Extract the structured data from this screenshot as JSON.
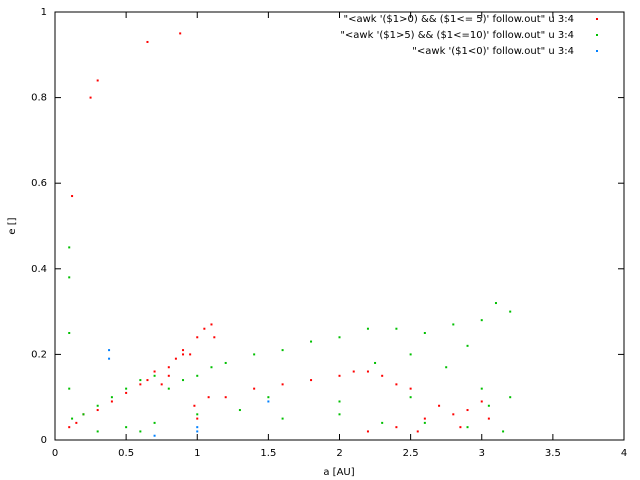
{
  "chart_data": {
    "type": "scatter",
    "x_label": "a [AU]",
    "y_label": "e []",
    "xlim": [
      0,
      4
    ],
    "xticks": [
      0,
      0.5,
      1,
      1.5,
      2,
      2.5,
      3,
      3.5,
      4
    ],
    "ylim": [
      0,
      1
    ],
    "yticks": [
      0,
      0.2,
      0.4,
      0.6,
      0.8,
      1
    ],
    "grid": false,
    "legend": "top-right",
    "series": [
      {
        "name": "\"<awk '($1>0) && ($1<= 5)' follow.out\" u 3:4",
        "color": "#ff0000",
        "x": [
          0.1,
          0.15,
          0.2,
          0.3,
          0.4,
          0.5,
          0.6,
          0.65,
          0.7,
          0.75,
          0.8,
          0.85,
          0.9,
          0.95,
          1.0,
          1.05,
          1.1,
          1.12,
          1.0,
          0.9,
          0.8,
          1.2,
          1.4,
          1.6,
          1.8,
          2.0,
          2.1,
          2.2,
          2.3,
          2.4,
          2.5,
          2.6,
          2.7,
          2.8,
          2.9,
          3.0,
          3.05,
          2.2,
          2.4,
          2.55,
          2.85,
          0.65,
          0.88,
          0.3,
          0.25,
          0.12,
          1.08,
          0.98
        ],
        "values": [
          0.03,
          0.04,
          0.06,
          0.07,
          0.09,
          0.11,
          0.13,
          0.14,
          0.16,
          0.13,
          0.17,
          0.19,
          0.21,
          0.2,
          0.24,
          0.26,
          0.27,
          0.24,
          0.05,
          0.2,
          0.15,
          0.1,
          0.12,
          0.13,
          0.14,
          0.15,
          0.16,
          0.16,
          0.15,
          0.13,
          0.12,
          0.05,
          0.08,
          0.06,
          0.07,
          0.09,
          0.05,
          0.02,
          0.03,
          0.02,
          0.03,
          0.93,
          0.95,
          0.84,
          0.8,
          0.57,
          0.1,
          0.08
        ]
      },
      {
        "name": "\"<awk '($1>5) && ($1<=10)' follow.out\" u 3:4",
        "color": "#00c000",
        "x": [
          0.1,
          0.1,
          0.1,
          0.1,
          0.12,
          0.2,
          0.3,
          0.4,
          0.5,
          0.6,
          0.7,
          0.8,
          0.9,
          1.0,
          1.1,
          1.2,
          1.4,
          1.6,
          1.8,
          2.0,
          2.2,
          2.4,
          2.6,
          2.8,
          3.0,
          3.1,
          3.2,
          0.5,
          0.7,
          1.0,
          1.3,
          1.6,
          2.0,
          2.3,
          2.6,
          2.9,
          3.15,
          2.25,
          2.5,
          2.75,
          2.9,
          3.05,
          3.2,
          1.5,
          2.0,
          2.5,
          3.0,
          0.3,
          0.6
        ],
        "values": [
          0.12,
          0.25,
          0.38,
          0.45,
          0.05,
          0.06,
          0.08,
          0.1,
          0.12,
          0.14,
          0.15,
          0.12,
          0.14,
          0.15,
          0.17,
          0.18,
          0.2,
          0.21,
          0.23,
          0.24,
          0.26,
          0.26,
          0.25,
          0.27,
          0.28,
          0.32,
          0.3,
          0.03,
          0.04,
          0.06,
          0.07,
          0.05,
          0.06,
          0.04,
          0.04,
          0.03,
          0.02,
          0.18,
          0.2,
          0.17,
          0.22,
          0.08,
          0.1,
          0.1,
          0.09,
          0.1,
          0.12,
          0.02,
          0.02
        ]
      },
      {
        "name": "\"<awk '($1<0)' follow.out\" u 3:4",
        "color": "#0080ff",
        "x": [
          0.38,
          0.38,
          0.7,
          1.0,
          1.0,
          1.5
        ],
        "values": [
          0.19,
          0.21,
          0.01,
          0.02,
          0.03,
          0.09
        ]
      }
    ]
  }
}
